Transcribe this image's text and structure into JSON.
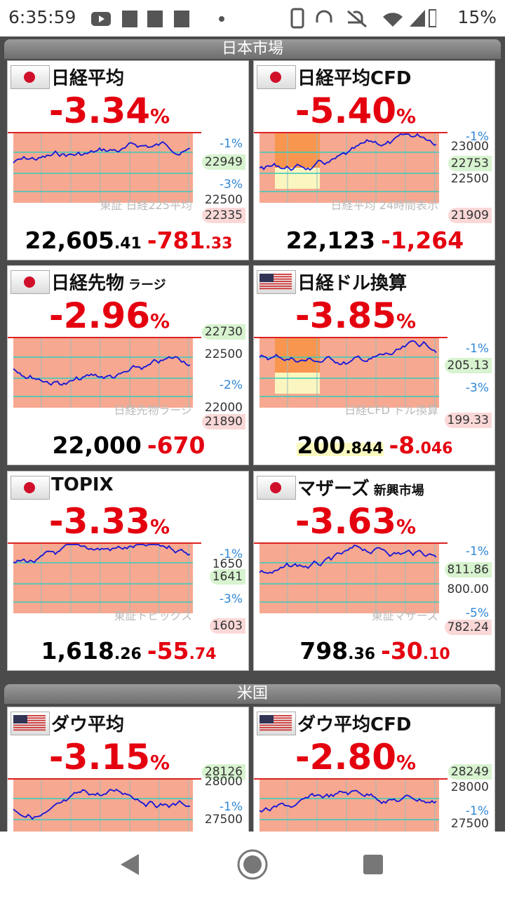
{
  "status": {
    "time": "6:35:59",
    "battery": "15%"
  },
  "sections": [
    {
      "title": "日本市場",
      "cards": [
        {
          "name": "日経平均",
          "pct": "-3.34",
          "pct_unit": "%",
          "price_main": "22,605",
          "price_dec": ".41",
          "chg_main": "-781",
          "chg_dec": ".33",
          "watermark": "東証 日経225平均",
          "labels": [
            "-1%",
            "22949",
            "-3%",
            "22500",
            "22335"
          ]
        },
        {
          "name": "日経平均CFD",
          "pct": "-5.40",
          "pct_unit": "%",
          "price_main": "22,123",
          "chg_main": "-1,264",
          "watermark": "日経平均 24時間表示",
          "labels": [
            "-1%",
            "23000",
            "22753",
            "22500",
            "21909"
          ]
        },
        {
          "name": "日経先物",
          "sub": "ラージ",
          "pct": "-2.96",
          "pct_unit": "%",
          "price_main": "22,000",
          "chg_main": "-670",
          "watermark": "日経先物ラージ",
          "labels": [
            "22730",
            "22500",
            "-2%",
            "22000",
            "21890"
          ]
        },
        {
          "name": "日経ドル換算",
          "pct": "-3.85",
          "pct_unit": "%",
          "price_main": "200",
          "price_dec": ".844",
          "chg_main": "-8",
          "chg_dec": ".046",
          "watermark": "日経CFD ドル換算",
          "labels": [
            "-1%",
            "205.13",
            "-3%",
            "199.33"
          ]
        },
        {
          "name": "TOPIX",
          "pct": "-3.33",
          "pct_unit": "%",
          "price_main": "1,618",
          "price_dec": ".26",
          "chg_main": "-55",
          "chg_dec": ".74",
          "watermark": "東証トピックス",
          "labels": [
            "-1%",
            "1650",
            "1641",
            "-3%",
            "1603"
          ]
        },
        {
          "name": "マザーズ",
          "sub": "新興市場",
          "pct": "-3.63",
          "pct_unit": "%",
          "price_main": "798",
          "price_dec": ".36",
          "chg_main": "-30",
          "chg_dec": ".10",
          "watermark": "東証マザーズ",
          "labels": [
            "-1%",
            "811.86",
            "800.00",
            "-5%",
            "782.24"
          ]
        }
      ]
    },
    {
      "title": "米国",
      "cards": [
        {
          "name": "ダウ平均",
          "pct": "-3.15",
          "pct_unit": "%",
          "labels": [
            "28126",
            "28000",
            "-1%",
            "27500"
          ]
        },
        {
          "name": "ダウ平均CFD",
          "pct": "-2.80",
          "pct_unit": "%",
          "labels": [
            "28249",
            "28000",
            "-1%",
            "27500"
          ]
        }
      ]
    }
  ]
}
